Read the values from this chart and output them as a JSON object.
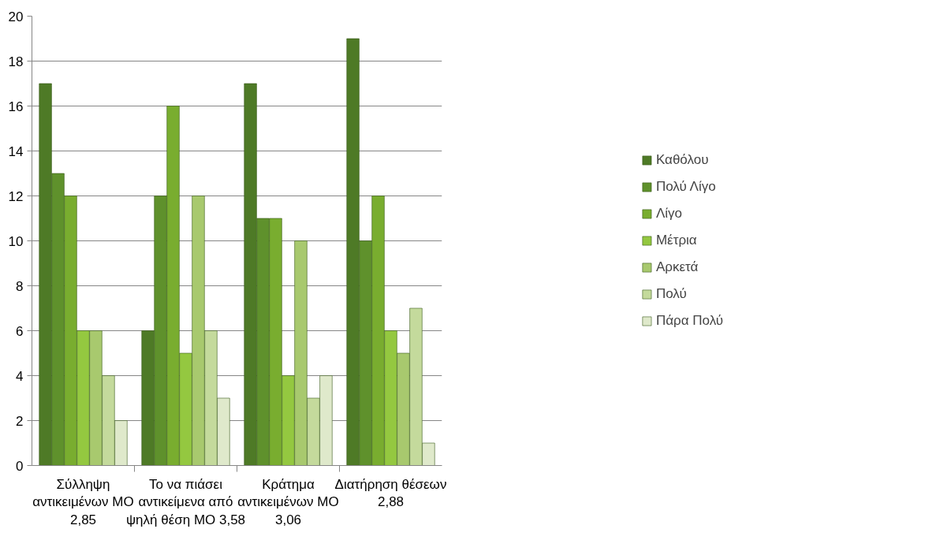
{
  "chart_data": {
    "type": "bar",
    "categories": [
      "Σύλληψη\nαντικειμένων ΜΟ\n2,85",
      "Το να πιάσει\nαντικείμενα από\nψηλή θέση ΜΟ 3,58",
      "Κράτημα\nαντικειμένων ΜΟ\n3,06",
      "Διατήρηση θέσεων\n2,88"
    ],
    "series": [
      {
        "name": "Καθόλου",
        "color": "#4e7a26",
        "values": [
          17,
          6,
          17,
          19
        ]
      },
      {
        "name": "Πολύ Λίγο",
        "color": "#5f912c",
        "values": [
          13,
          12,
          11,
          10
        ]
      },
      {
        "name": "Λίγο",
        "color": "#79ad2f",
        "values": [
          12,
          16,
          11,
          12
        ]
      },
      {
        "name": "Μέτρια",
        "color": "#94c840",
        "values": [
          6,
          5,
          4,
          6
        ]
      },
      {
        "name": "Αρκετά",
        "color": "#a8c96e",
        "values": [
          6,
          12,
          10,
          5
        ]
      },
      {
        "name": "Πολύ",
        "color": "#c4da9c",
        "values": [
          4,
          6,
          3,
          7
        ]
      },
      {
        "name": "Πάρα Πολύ",
        "color": "#dfe9cb",
        "values": [
          2,
          3,
          4,
          1
        ]
      }
    ],
    "ylim": [
      0,
      20
    ],
    "yticks": [
      0,
      2,
      4,
      6,
      8,
      10,
      12,
      14,
      16,
      18,
      20
    ],
    "grid": "y",
    "legend": "right"
  }
}
